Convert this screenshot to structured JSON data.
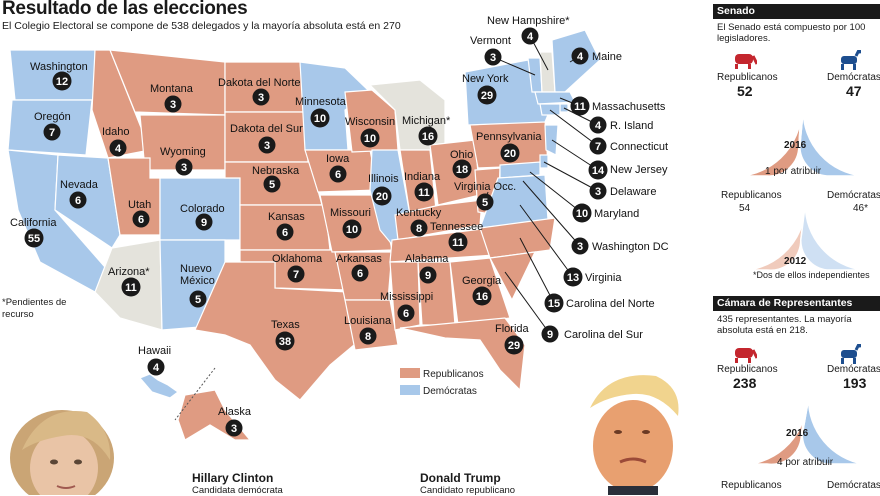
{
  "header": {
    "title": "Resultado de las elecciones",
    "subtitle": "El Colegio Electoral se compone de 538 delegados y la mayoría absoluta está en 270"
  },
  "colors": {
    "republican": "#df9b82",
    "democrat": "#a8c8ea",
    "pending": "#e4e3dc",
    "marker": "#1a1a1a"
  },
  "states": [
    {
      "name": "Washington",
      "ev": "12",
      "party": "D"
    },
    {
      "name": "Oregón",
      "ev": "7",
      "party": "D"
    },
    {
      "name": "California",
      "ev": "55",
      "party": "D"
    },
    {
      "name": "Nevada",
      "ev": "6",
      "party": "D"
    },
    {
      "name": "Idaho",
      "ev": "4",
      "party": "R"
    },
    {
      "name": "Montana",
      "ev": "3",
      "party": "R"
    },
    {
      "name": "Wyoming",
      "ev": "3",
      "party": "R"
    },
    {
      "name": "Utah",
      "ev": "6",
      "party": "R"
    },
    {
      "name": "Colorado",
      "ev": "9",
      "party": "D"
    },
    {
      "name": "Arizona*",
      "ev": "11",
      "party": "P"
    },
    {
      "name": "Nuevo\nMéxico",
      "ev": "5",
      "party": "D"
    },
    {
      "name": "Dakota del Norte",
      "ev": "3",
      "party": "R"
    },
    {
      "name": "Dakota del Sur",
      "ev": "3",
      "party": "R"
    },
    {
      "name": "Nebraska",
      "ev": "5",
      "party": "R"
    },
    {
      "name": "Kansas",
      "ev": "6",
      "party": "R"
    },
    {
      "name": "Oklahoma",
      "ev": "7",
      "party": "R"
    },
    {
      "name": "Texas",
      "ev": "38",
      "party": "R"
    },
    {
      "name": "Minnesota",
      "ev": "10",
      "party": "D"
    },
    {
      "name": "Iowa",
      "ev": "6",
      "party": "R"
    },
    {
      "name": "Missouri",
      "ev": "10",
      "party": "R"
    },
    {
      "name": "Arkansas",
      "ev": "6",
      "party": "R"
    },
    {
      "name": "Louisiana",
      "ev": "8",
      "party": "R"
    },
    {
      "name": "Wisconsin",
      "ev": "10",
      "party": "R"
    },
    {
      "name": "Illinois",
      "ev": "20",
      "party": "D"
    },
    {
      "name": "Michigan*",
      "ev": "16",
      "party": "P"
    },
    {
      "name": "Indiana",
      "ev": "11",
      "party": "R"
    },
    {
      "name": "Ohio",
      "ev": "18",
      "party": "R"
    },
    {
      "name": "Kentucky",
      "ev": "8",
      "party": "R"
    },
    {
      "name": "Tennessee",
      "ev": "11",
      "party": "R"
    },
    {
      "name": "Mississippi",
      "ev": "6",
      "party": "R"
    },
    {
      "name": "Alabama",
      "ev": "9",
      "party": "R"
    },
    {
      "name": "Georgia",
      "ev": "16",
      "party": "R"
    },
    {
      "name": "Florida",
      "ev": "29",
      "party": "R"
    },
    {
      "name": "Pennsylvania",
      "ev": "20",
      "party": "R"
    },
    {
      "name": "Virginia Occ.",
      "ev": "5",
      "party": "R"
    },
    {
      "name": "New York",
      "ev": "29",
      "party": "D"
    },
    {
      "name": "Vermont",
      "ev": "3",
      "party": "D"
    },
    {
      "name": "New Hampshire*",
      "ev": "4",
      "party": "P"
    },
    {
      "name": "Maine",
      "ev": "4",
      "party": "D"
    },
    {
      "name": "Massachusetts",
      "ev": "11",
      "party": "D"
    },
    {
      "name": "R. Island",
      "ev": "4",
      "party": "D"
    },
    {
      "name": "Connecticut",
      "ev": "7",
      "party": "D"
    },
    {
      "name": "New Jersey",
      "ev": "14",
      "party": "D"
    },
    {
      "name": "Delaware",
      "ev": "3",
      "party": "D"
    },
    {
      "name": "Maryland",
      "ev": "10",
      "party": "D"
    },
    {
      "name": "Washington DC",
      "ev": "3",
      "party": "D"
    },
    {
      "name": "Virginia",
      "ev": "13",
      "party": "D"
    },
    {
      "name": "Carolina del Norte",
      "ev": "15",
      "party": "R"
    },
    {
      "name": "Carolina del Sur",
      "ev": "9",
      "party": "R"
    },
    {
      "name": "Hawaii",
      "ev": "4",
      "party": "D"
    },
    {
      "name": "Alaska",
      "ev": "3",
      "party": "R"
    }
  ],
  "legend": {
    "republicans": "Republicanos",
    "democrats": "Demócratas"
  },
  "note": "*Pendientes de recurso",
  "candidates": [
    {
      "name": "Hillary Clinton",
      "role": "Candidata demócrata"
    },
    {
      "name": "Donald Trump",
      "role": "Candidato republicano"
    }
  ],
  "senate": {
    "heading": "Senado",
    "desc": "El Senado está compuesto por 100 legisladores.",
    "rep_label": "Republicanos",
    "dem_label": "Demócratas",
    "rep_2016": "52",
    "dem_2016": "47",
    "year_2016": "2016",
    "pending": "1 por atribuir",
    "rep_2012": "54",
    "dem_2012": "46*",
    "year_2012": "2012",
    "note_2012": "*Dos de ellos independientes",
    "rep_2016_share": 0.52,
    "dem_2016_share": 0.47,
    "rep_2012_share": 0.54,
    "dem_2012_share": 0.46
  },
  "house": {
    "heading": "Cámara de Representantes",
    "desc": "435 representantes. La mayoría absoluta está en 218.",
    "rep_label": "Republicanos",
    "dem_label": "Demócratas",
    "rep_2016": "238",
    "dem_2016": "193",
    "year_2016": "2016",
    "pending": "4 por atribuir",
    "rep_bottom": "Republicanos",
    "dem_bottom": "Demócratas",
    "rep_2016_share": 0.547,
    "dem_2016_share": 0.444
  }
}
